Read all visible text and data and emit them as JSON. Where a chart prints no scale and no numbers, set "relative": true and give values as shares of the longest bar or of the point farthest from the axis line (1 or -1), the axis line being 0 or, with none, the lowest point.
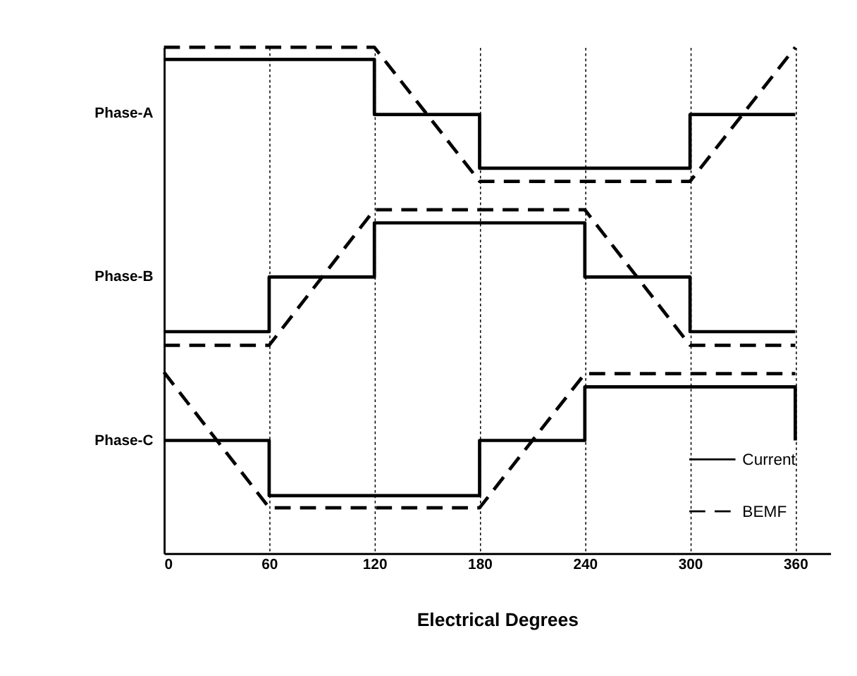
{
  "chart_data": {
    "type": "line",
    "xlabel": "Electrical Degrees",
    "relative": true,
    "xlim": [
      0,
      380
    ],
    "xticks": [
      0,
      60,
      120,
      180,
      240,
      300,
      360
    ],
    "grid": "x",
    "legend": "bottom right",
    "marker": "none",
    "annotations": [
      "Phase-A",
      "Phase-B",
      "Phase-C"
    ],
    "series": [
      {
        "name": "Current",
        "color": "#000000",
        "line_style": "solid",
        "x": [
          0,
          120,
          120,
          180,
          180,
          300,
          300,
          360
        ],
        "values": [
          0.976,
          0.976,
          0.867,
          0.867,
          0.761,
          0.761,
          0.867,
          0.867
        ]
      },
      {
        "name": "BEMF",
        "color": "#000000",
        "line_style": "dashed",
        "x": [
          0,
          120,
          180,
          300,
          360
        ],
        "values": [
          1.0,
          1.0,
          0.735,
          0.735,
          1.0
        ]
      },
      {
        "color": "#000000",
        "line_style": "solid",
        "x": [
          0,
          60,
          60,
          120,
          120,
          240,
          240,
          300,
          300,
          360
        ],
        "values": [
          0.438,
          0.438,
          0.546,
          0.546,
          0.653,
          0.653,
          0.546,
          0.546,
          0.438,
          0.438
        ]
      },
      {
        "color": "#000000",
        "line_style": "dashed",
        "x": [
          0,
          60,
          120,
          240,
          300,
          360
        ],
        "values": [
          0.411,
          0.411,
          0.679,
          0.679,
          0.411,
          0.411
        ]
      },
      {
        "color": "#000000",
        "line_style": "solid",
        "x": [
          0,
          60,
          60,
          180,
          180,
          240,
          240,
          360,
          360
        ],
        "values": [
          0.223,
          0.223,
          0.114,
          0.114,
          0.223,
          0.223,
          0.329,
          0.329,
          0.223
        ]
      },
      {
        "color": "#000000",
        "line_style": "dashed",
        "x": [
          0,
          60,
          180,
          240,
          360
        ],
        "values": [
          0.358,
          0.09,
          0.09,
          0.355,
          0.355
        ]
      }
    ]
  }
}
